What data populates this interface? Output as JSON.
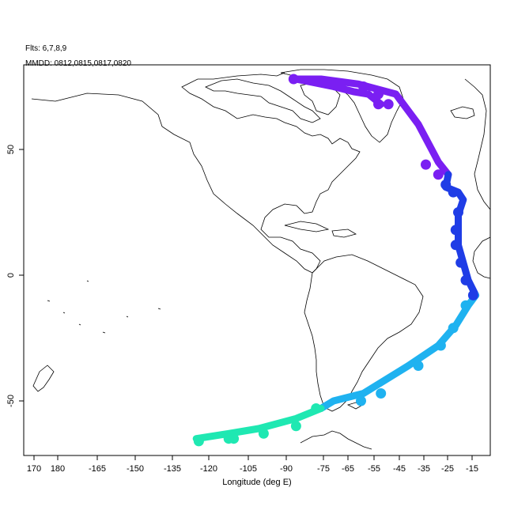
{
  "header": {
    "flights": "Flts: 6,7,8,9",
    "dates": "MMDD: 0812,0815,0817,0820"
  },
  "axes": {
    "xlabel": "Longitude (deg E)",
    "ylabel": ""
  },
  "colors": {
    "segment_1": "#7a1ff2",
    "segment_2": "#1f3de6",
    "segment_3": "#1fb2f0",
    "segment_4": "#1fe8b2",
    "coastline": "#000000",
    "frame": "#000000"
  },
  "chart_data": {
    "type": "map",
    "projection": "longitude-latitude (shifted longitude axis)",
    "xlim_deg": [
      165,
      -5
    ],
    "ylim_deg": [
      -71,
      86
    ],
    "x_ticks": [
      {
        "label": "170",
        "value": 170
      },
      {
        "label": "180",
        "value": 180
      },
      {
        "label": "-165",
        "value": -165
      },
      {
        "label": "-150",
        "value": -150
      },
      {
        "label": "-135",
        "value": -135
      },
      {
        "label": "-120",
        "value": -120
      },
      {
        "label": "-105",
        "value": -105
      },
      {
        "label": "-90",
        "value": -90
      },
      {
        "label": "-75",
        "value": -75
      },
      {
        "label": "-65",
        "value": -65
      },
      {
        "label": "-55",
        "value": -55
      },
      {
        "label": "-45",
        "value": -45
      },
      {
        "label": "-35",
        "value": -35
      },
      {
        "label": "-25",
        "value": -25
      },
      {
        "label": "-15",
        "value": -15
      }
    ],
    "y_ticks": [
      {
        "label": "50",
        "value": 50
      },
      {
        "label": "0",
        "value": 0
      },
      {
        "label": "-50",
        "value": -50
      }
    ],
    "series": [
      {
        "color": "#7a1ff2",
        "points": [
          [
            -51,
            68
          ],
          [
            -56,
            72
          ],
          [
            -62,
            73
          ],
          [
            -70,
            75
          ],
          [
            -80,
            77
          ],
          [
            -85,
            78
          ],
          [
            -75,
            78
          ],
          [
            -60,
            76
          ],
          [
            -45,
            72
          ],
          [
            -36,
            60
          ],
          [
            -28,
            45
          ],
          [
            -24,
            40
          ]
        ]
      },
      {
        "color": "#1f3de6",
        "points": [
          [
            -24,
            40
          ],
          [
            -25,
            35
          ],
          [
            -20,
            33
          ],
          [
            -18,
            30
          ],
          [
            -20,
            24
          ],
          [
            -20,
            17
          ],
          [
            -20,
            12
          ],
          [
            -18,
            5
          ],
          [
            -16,
            -2
          ],
          [
            -13,
            -8
          ]
        ]
      },
      {
        "color": "#1fb2f0",
        "points": [
          [
            -13,
            -8
          ],
          [
            -16,
            -12
          ],
          [
            -21,
            -20
          ],
          [
            -28,
            -28
          ],
          [
            -40,
            -36
          ],
          [
            -58,
            -47
          ],
          [
            -70,
            -50
          ],
          [
            -75,
            -53
          ]
        ]
      },
      {
        "color": "#1fe8b2",
        "points": [
          [
            -75,
            -53
          ],
          [
            -85,
            -57
          ],
          [
            -100,
            -61
          ],
          [
            -112,
            -63
          ],
          [
            -125,
            -65
          ]
        ]
      }
    ],
    "markers": [
      {
        "color": "#7a1ff2",
        "points": [
          [
            -86,
            78
          ],
          [
            -58,
            75
          ],
          [
            -52,
            72
          ],
          [
            -52,
            68
          ],
          [
            -48,
            68
          ],
          [
            -33,
            44
          ],
          [
            -28,
            40
          ]
        ]
      },
      {
        "color": "#1f3de6",
        "points": [
          [
            -25,
            36
          ],
          [
            -22,
            33
          ],
          [
            -20,
            25
          ],
          [
            -21,
            18
          ],
          [
            -21,
            12
          ],
          [
            -19,
            5
          ],
          [
            -17,
            -2
          ],
          [
            -14,
            -8
          ]
        ]
      },
      {
        "color": "#1fb2f0",
        "points": [
          [
            -17,
            -12
          ],
          [
            -22,
            -21
          ],
          [
            -27,
            -28
          ],
          [
            -36,
            -36
          ],
          [
            -51,
            -47
          ],
          [
            -59,
            -50
          ]
        ]
      },
      {
        "color": "#1fe8b2",
        "points": [
          [
            -77,
            -53
          ],
          [
            -85,
            -60
          ],
          [
            -98,
            -63
          ],
          [
            -110,
            -65
          ],
          [
            -112,
            -65
          ],
          [
            -124,
            -66
          ]
        ]
      }
    ]
  }
}
